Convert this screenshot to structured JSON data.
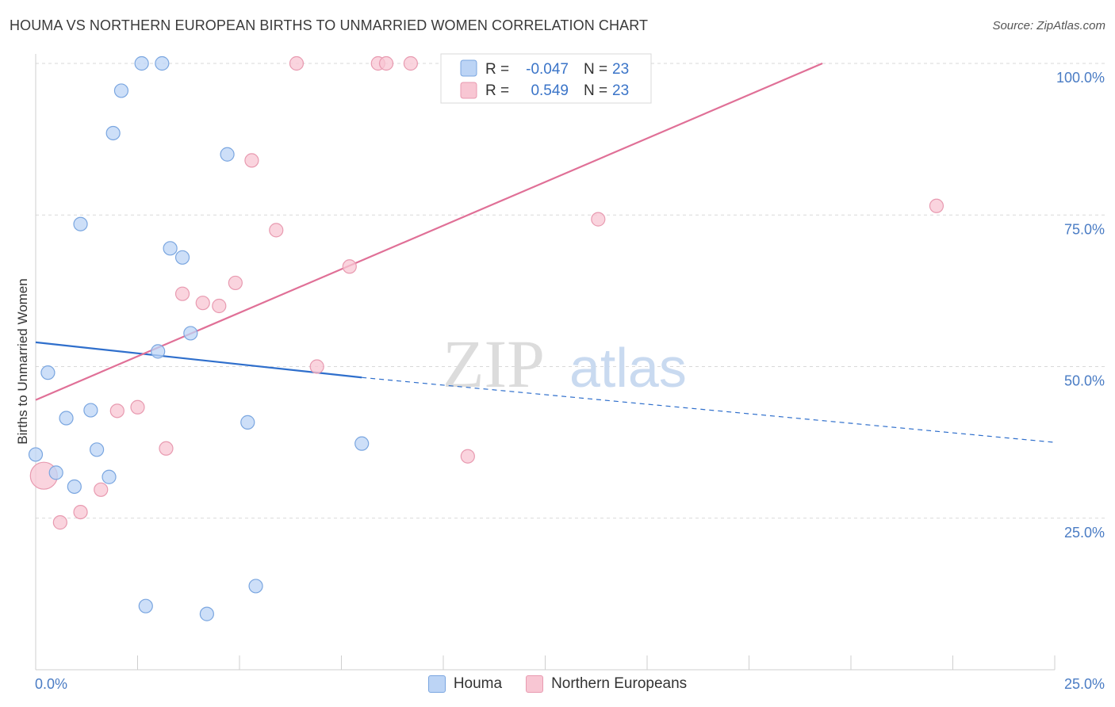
{
  "title": "HOUMA VS NORTHERN EUROPEAN BIRTHS TO UNMARRIED WOMEN CORRELATION CHART",
  "source": "Source: ZipAtlas.com",
  "watermark": {
    "zip": "ZIP",
    "atlas": "atlas"
  },
  "legend": {
    "houma": {
      "r_label": "R =",
      "r_value": "-0.047",
      "n_label": "N =",
      "n_value": "23"
    },
    "northern": {
      "r_label": "R =",
      "r_value": "0.549",
      "n_label": "N =",
      "n_value": "23"
    }
  },
  "bottom_legend": {
    "houma": "Houma",
    "northern": "Northern Europeans"
  },
  "colors": {
    "houma_fill": "#bcd4f5",
    "houma_stroke": "#7aa6e0",
    "houma_line": "#2f6fcc",
    "northern_fill": "#f8c6d3",
    "northern_stroke": "#e89ab0",
    "northern_line": "#e07097",
    "tick_text": "#4a7cc4",
    "grid": "#d9d9d9"
  },
  "chart_data": {
    "type": "scatter",
    "title": "HOUMA VS NORTHERN EUROPEAN BIRTHS TO UNMARRIED WOMEN CORRELATION CHART",
    "xlabel": "",
    "ylabel": "Births to Unmarried Women",
    "xlim": [
      0,
      25
    ],
    "ylim": [
      0,
      100
    ],
    "x_tick_labels": [
      "0.0%",
      "25.0%"
    ],
    "y_ticks": [
      25,
      50,
      75,
      100
    ],
    "y_tick_labels": [
      "25.0%",
      "50.0%",
      "75.0%",
      "100.0%"
    ],
    "grid": true,
    "legend_position": "top-center",
    "series": [
      {
        "name": "Houma",
        "points": [
          [
            2.6,
            100
          ],
          [
            3.1,
            100
          ],
          [
            2.1,
            95.5
          ],
          [
            1.9,
            88.5
          ],
          [
            4.7,
            85
          ],
          [
            1.1,
            73.5
          ],
          [
            3.3,
            69.5
          ],
          [
            3.6,
            68
          ],
          [
            3.8,
            55.5
          ],
          [
            3.0,
            52.5
          ],
          [
            0.3,
            49
          ],
          [
            0.75,
            41.5
          ],
          [
            1.35,
            42.8
          ],
          [
            5.2,
            40.8
          ],
          [
            8.0,
            37.3
          ],
          [
            1.5,
            36.3
          ],
          [
            0.0,
            35.5
          ],
          [
            0.5,
            32.5
          ],
          [
            1.8,
            31.8
          ],
          [
            0.95,
            30.2
          ],
          [
            5.4,
            13.8
          ],
          [
            2.7,
            10.5
          ],
          [
            4.2,
            9.2
          ]
        ],
        "trend": {
          "x1": 0,
          "y1": 54,
          "x2": 8.0,
          "y2": 48.2,
          "dash_to_x": 25,
          "dash_to_y": 37.5
        }
      },
      {
        "name": "Northern Europeans",
        "points": [
          [
            6.4,
            100
          ],
          [
            8.4,
            100
          ],
          [
            8.6,
            100
          ],
          [
            9.2,
            100
          ],
          [
            10.3,
            100
          ],
          [
            5.3,
            84
          ],
          [
            22.1,
            76.5
          ],
          [
            13.8,
            74.3
          ],
          [
            5.9,
            72.5
          ],
          [
            7.7,
            66.5
          ],
          [
            4.9,
            63.8
          ],
          [
            3.6,
            62
          ],
          [
            4.1,
            60.5
          ],
          [
            4.5,
            60
          ],
          [
            6.9,
            50
          ],
          [
            2.5,
            43.3
          ],
          [
            2.0,
            42.7
          ],
          [
            3.2,
            36.5
          ],
          [
            10.6,
            35.2
          ],
          [
            0.2,
            32
          ],
          [
            1.6,
            29.7
          ],
          [
            1.1,
            26
          ],
          [
            0.6,
            24.3
          ]
        ],
        "trend": {
          "x1": 0,
          "y1": 44.5,
          "x2": 19.3,
          "y2": 100
        }
      }
    ]
  }
}
